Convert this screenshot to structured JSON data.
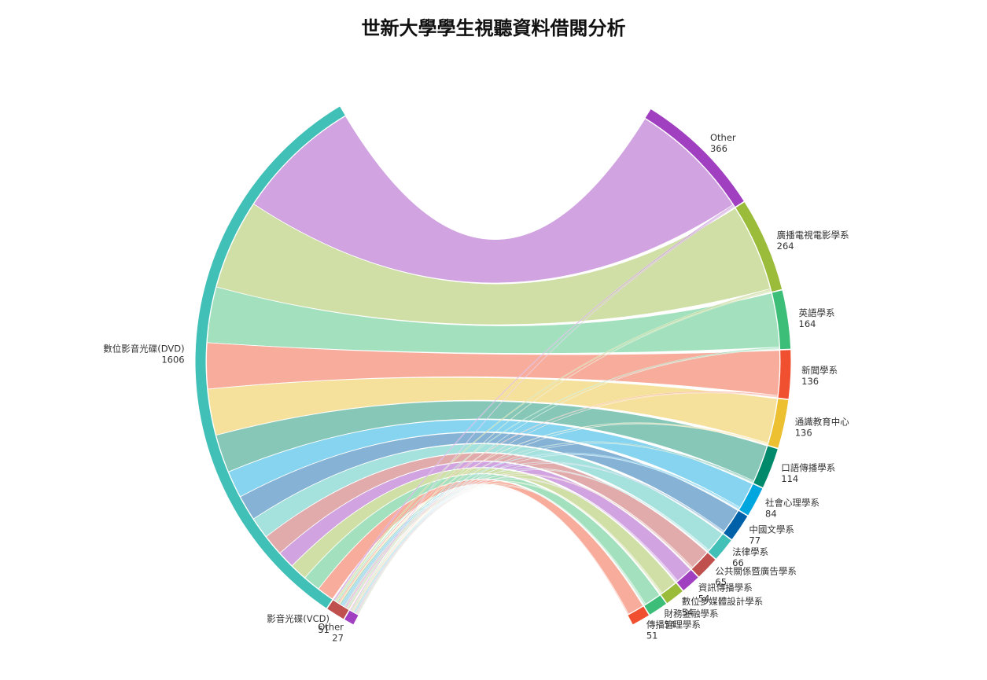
{
  "chart_data": {
    "type": "chord",
    "title": "世新大學學生視聽資料借閱分析",
    "sources": [
      {
        "name": "數位影音光碟(DVD)",
        "value": 1606,
        "color": "#41c0b7"
      },
      {
        "name": "影音光碟(VCD)",
        "value": 51,
        "color": "#c0504d"
      },
      {
        "name": "Other",
        "value": 27,
        "color": "#a040c0"
      }
    ],
    "targets": [
      {
        "name": "Other",
        "value": 366,
        "color": "#a040c0",
        "flow": "#cf9fdf"
      },
      {
        "name": "廣播電視電影學系",
        "value": 264,
        "color": "#9bbb3b",
        "flow": "#cddda1"
      },
      {
        "name": "英語學系",
        "value": 164,
        "color": "#3dbe78",
        "flow": "#9edfbb"
      },
      {
        "name": "新聞學系",
        "value": 136,
        "color": "#f05030",
        "flow": "#f7a897"
      },
      {
        "name": "通識教育中心",
        "value": 136,
        "color": "#ecc030",
        "flow": "#f5df97"
      },
      {
        "name": "口語傳播學系",
        "value": 114,
        "color": "#00896a",
        "flow": "#7fc4b4"
      },
      {
        "name": "社會心理學系",
        "value": 84,
        "color": "#00a6dd",
        "flow": "#7fd2ee"
      },
      {
        "name": "中國文學系",
        "value": 77,
        "color": "#0060a8",
        "flow": "#7fafd3"
      },
      {
        "name": "法律學系",
        "value": 66,
        "color": "#41c0b7",
        "flow": "#a0dfdb"
      },
      {
        "name": "公共關係暨廣告學系",
        "value": 65,
        "color": "#c0504d",
        "flow": "#dfa7a6"
      },
      {
        "name": "資訊傳播學系",
        "value": 54,
        "color": "#a040c0",
        "flow": "#cf9fdf"
      },
      {
        "name": "數位多媒體設計學系",
        "value": 54,
        "color": "#9bbb3b",
        "flow": "#cddda1"
      },
      {
        "name": "財務金融學系",
        "value": 54,
        "color": "#3dbe78",
        "flow": "#9edfbb"
      },
      {
        "name": "傳播管理學系",
        "value": 51,
        "color": "#f05030",
        "flow": "#f7a897"
      }
    ]
  }
}
